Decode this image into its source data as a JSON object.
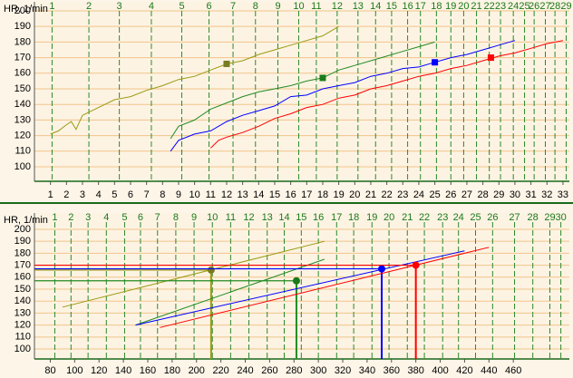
{
  "chart_data": [
    {
      "type": "line",
      "y_label": "HR, 1/min",
      "xlim": [
        0,
        33.4
      ],
      "ylim": [
        90.7,
        205.8
      ],
      "xticks": [
        1,
        2,
        3,
        4,
        5,
        6,
        7,
        8,
        9,
        10,
        11,
        12,
        13,
        14,
        15,
        16,
        17,
        18,
        19,
        20,
        21,
        22,
        23,
        24,
        25,
        26,
        27,
        28,
        29,
        30,
        31,
        32,
        33
      ],
      "yticks": [
        100,
        110,
        120,
        130,
        140,
        150,
        160,
        170,
        180,
        190,
        200
      ],
      "x2ticks": [
        {
          "value": 1.1,
          "label": "1"
        },
        {
          "value": 3.4,
          "label": "2"
        },
        {
          "value": 5.3,
          "label": "3"
        },
        {
          "value": 7.3,
          "label": "4"
        },
        {
          "value": 9.2,
          "label": "5"
        },
        {
          "value": 10.9,
          "label": "6"
        },
        {
          "value": 12.4,
          "label": "7"
        },
        {
          "value": 13.8,
          "label": "8"
        },
        {
          "value": 15.2,
          "label": "9"
        },
        {
          "value": 16.5,
          "label": "10"
        },
        {
          "value": 17.6,
          "label": "11"
        },
        {
          "value": 18.9,
          "label": "12"
        },
        {
          "value": 20.2,
          "label": "13"
        },
        {
          "value": 21.3,
          "label": "14"
        },
        {
          "value": 22.3,
          "label": "15"
        },
        {
          "value": 23.3,
          "label": "16"
        },
        {
          "value": 24.1,
          "label": "17"
        },
        {
          "value": 25.1,
          "label": "18"
        },
        {
          "value": 26,
          "label": "19"
        },
        {
          "value": 26.8,
          "label": "20"
        },
        {
          "value": 27.6,
          "label": "21"
        },
        {
          "value": 28.4,
          "label": "22"
        },
        {
          "value": 29.1,
          "label": "23"
        },
        {
          "value": 29.9,
          "label": "24"
        },
        {
          "value": 30.6,
          "label": "25"
        },
        {
          "value": 31.2,
          "label": "26"
        },
        {
          "value": 31.9,
          "label": "27"
        },
        {
          "value": 32.5,
          "label": "28"
        },
        {
          "value": 33.2,
          "label": "29"
        }
      ],
      "series": [
        {
          "color": "#9a9a10",
          "marker_color": "#7a7a20",
          "x": [
            1,
            1.5,
            2,
            2.3,
            2.6,
            3,
            4,
            5,
            6,
            7,
            8,
            9,
            10,
            11,
            12,
            13,
            14,
            15,
            16,
            17,
            18,
            19
          ],
          "y": [
            121,
            123,
            127,
            129,
            124,
            133,
            138,
            143,
            145,
            149,
            152,
            156,
            158,
            162,
            166,
            168,
            172,
            175,
            178,
            181,
            184,
            190
          ],
          "marker": {
            "x": 12,
            "y": 166
          }
        },
        {
          "color": "#228b22",
          "marker_color": "#1a7a1a",
          "x": [
            8.5,
            9,
            10,
            11,
            12,
            13,
            14,
            15,
            16,
            17,
            18,
            19,
            20,
            21,
            22,
            23,
            24,
            25
          ],
          "y": [
            118,
            126,
            130,
            137,
            141,
            145,
            148,
            150,
            152,
            155,
            157,
            162,
            165,
            168,
            171,
            174,
            177,
            180
          ],
          "marker": {
            "x": 18,
            "y": 157
          }
        },
        {
          "color": "#0000ff",
          "marker_color": "#0000ff",
          "x": [
            8.5,
            9,
            10,
            11,
            12,
            13,
            14,
            15,
            16,
            17,
            18,
            19,
            20,
            21,
            22,
            23,
            24,
            25,
            26,
            27,
            28,
            29,
            30
          ],
          "y": [
            110,
            117,
            121,
            123,
            129,
            133,
            136,
            139,
            145,
            146,
            150,
            152,
            154,
            158,
            160,
            163,
            164,
            167,
            170,
            172,
            175,
            178,
            181
          ],
          "marker": {
            "x": 25,
            "y": 167
          }
        },
        {
          "color": "#ff0000",
          "marker_color": "#ff0000",
          "x": [
            11,
            11.5,
            12,
            13,
            14,
            15,
            16,
            17,
            18,
            19,
            20,
            21,
            22,
            23,
            24,
            25,
            26,
            27,
            28,
            29,
            30,
            31,
            32,
            33
          ],
          "y": [
            112,
            117,
            119,
            122,
            126,
            131,
            134,
            138,
            140,
            144,
            146,
            150,
            152,
            155,
            158,
            160,
            163,
            165,
            168,
            171,
            173,
            176,
            179,
            181
          ],
          "marker": {
            "x": 28.5,
            "y": 170
          }
        }
      ]
    },
    {
      "type": "line",
      "y_label": "HR, 1/min",
      "xlim": [
        67,
        506
      ],
      "ylim": [
        91.7,
        213.6
      ],
      "xticks": [
        80,
        100,
        120,
        140,
        160,
        180,
        200,
        220,
        240,
        260,
        280,
        300,
        320,
        340,
        360,
        380,
        400,
        420,
        440,
        460
      ],
      "yticks": [
        100,
        110,
        120,
        130,
        140,
        150,
        160,
        170,
        180,
        190,
        200
      ],
      "x2ticks": [
        {
          "value": 83.7,
          "label": "1"
        },
        {
          "value": 97,
          "label": "2"
        },
        {
          "value": 111,
          "label": "3"
        },
        {
          "value": 126,
          "label": "4"
        },
        {
          "value": 141,
          "label": "5"
        },
        {
          "value": 154,
          "label": "6"
        },
        {
          "value": 168,
          "label": "7"
        },
        {
          "value": 183,
          "label": "8"
        },
        {
          "value": 198,
          "label": "9"
        },
        {
          "value": 213,
          "label": "10"
        },
        {
          "value": 228,
          "label": "11"
        },
        {
          "value": 243,
          "label": "12"
        },
        {
          "value": 258,
          "label": "13"
        },
        {
          "value": 272,
          "label": "14"
        },
        {
          "value": 286,
          "label": "15"
        },
        {
          "value": 300,
          "label": "16"
        },
        {
          "value": 315,
          "label": "17"
        },
        {
          "value": 329,
          "label": "18"
        },
        {
          "value": 344,
          "label": "19"
        },
        {
          "value": 358,
          "label": "20"
        },
        {
          "value": 373,
          "label": "21"
        },
        {
          "value": 387,
          "label": "22"
        },
        {
          "value": 402,
          "label": "23"
        },
        {
          "value": 415,
          "label": "24"
        },
        {
          "value": 429,
          "label": "25"
        },
        {
          "value": 443,
          "label": "26"
        },
        {
          "value": 461,
          "label": "27"
        },
        {
          "value": 476,
          "label": "28"
        },
        {
          "value": 490,
          "label": "29"
        },
        {
          "value": 499,
          "label": "30"
        }
      ],
      "series": [
        {
          "color": "#9a9a10",
          "marker_color": "#7a7a20",
          "x": [
            90,
            305
          ],
          "y": [
            135,
            190
          ],
          "marker": {
            "x": 212,
            "y": 166
          }
        },
        {
          "color": "#228b22",
          "marker_color": "#1a7a1a",
          "x": [
            150,
            305
          ],
          "y": [
            120,
            175
          ],
          "marker": {
            "x": 282,
            "y": 157
          }
        },
        {
          "color": "#0000ff",
          "marker_color": "#0000ff",
          "x": [
            150,
            420
          ],
          "y": [
            120,
            182
          ],
          "marker": {
            "x": 352,
            "y": 167
          }
        },
        {
          "color": "#ff0000",
          "marker_color": "#ff0000",
          "x": [
            170,
            440
          ],
          "y": [
            118,
            185
          ],
          "marker": {
            "x": 380,
            "y": 170
          }
        }
      ]
    }
  ]
}
